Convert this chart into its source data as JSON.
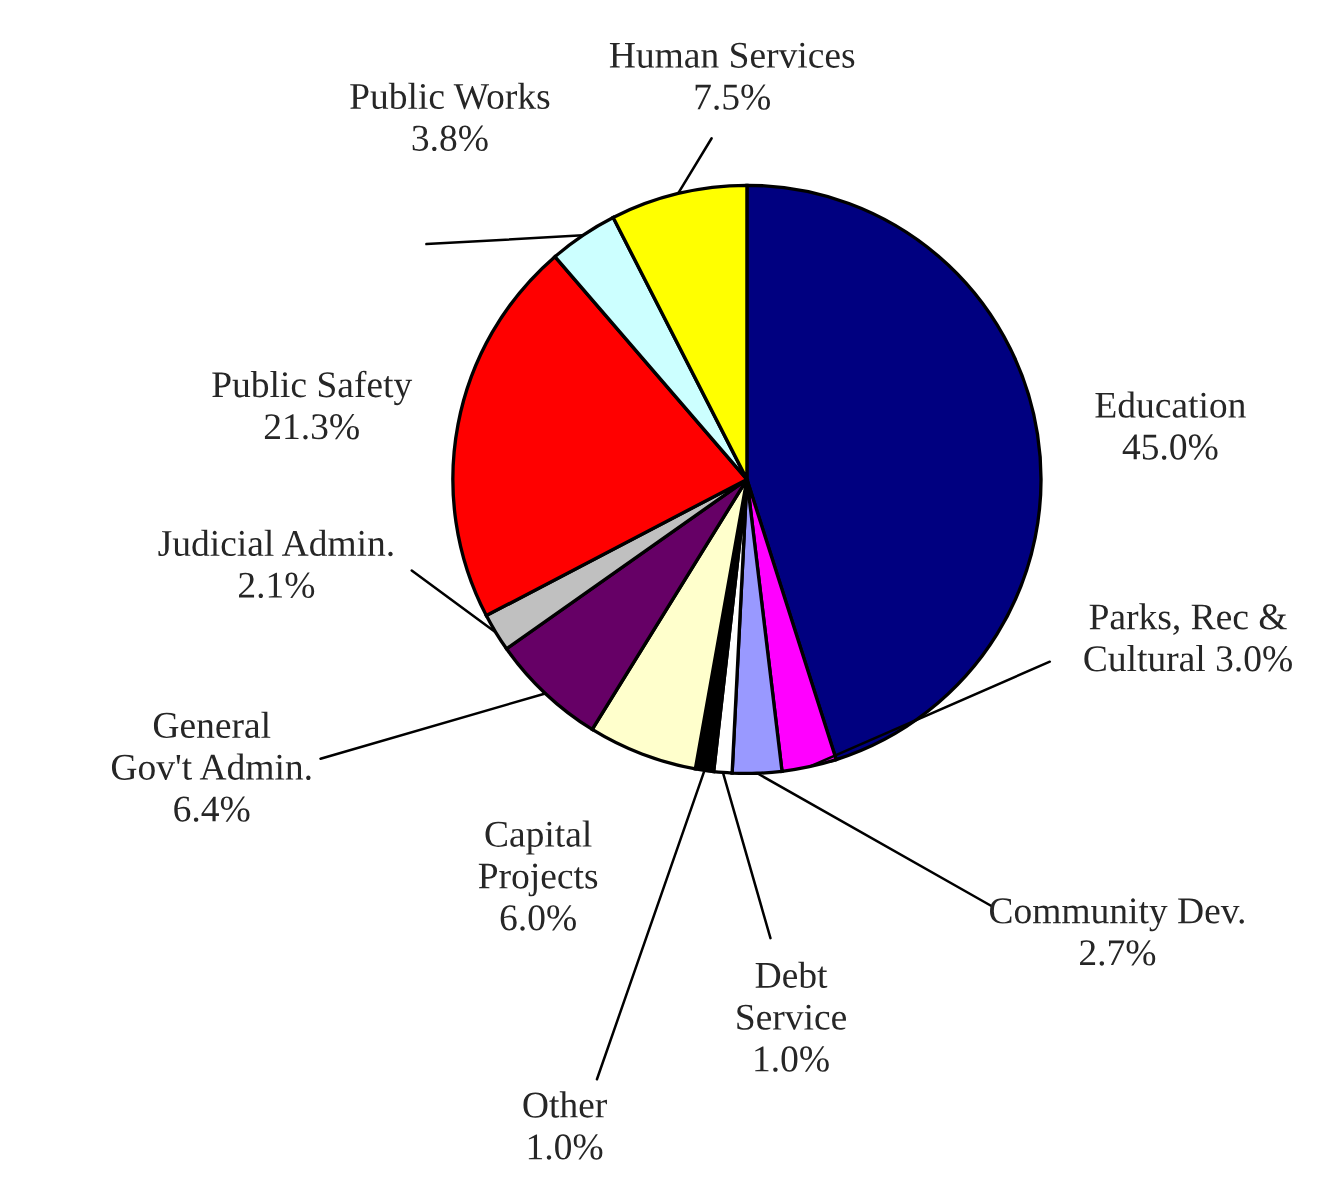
{
  "chart_data": {
    "type": "pie",
    "categories": [
      "Education",
      "Parks, Rec & Cultural",
      "Community Dev.",
      "Debt Service",
      "Other",
      "Capital Projects",
      "General Gov't Admin.",
      "Judicial Admin.",
      "Public Safety",
      "Public Works",
      "Human Services"
    ],
    "values": [
      45.0,
      3.0,
      2.7,
      1.0,
      1.0,
      6.0,
      6.4,
      2.1,
      21.3,
      3.8,
      7.5
    ],
    "value_labels": [
      "45.0%",
      "3.0%",
      "2.7%",
      "1.0%",
      "1.0%",
      "6.0%",
      "6.4%",
      "2.1%",
      "21.3%",
      "3.8%",
      "7.5%"
    ],
    "colors": [
      "#000080",
      "#ff00ff",
      "#9999ff",
      "#ffffff",
      "#000000",
      "#ffffcc",
      "#660066",
      "#c0c0c0",
      "#ff0000",
      "#ccffff",
      "#ffff00"
    ]
  }
}
